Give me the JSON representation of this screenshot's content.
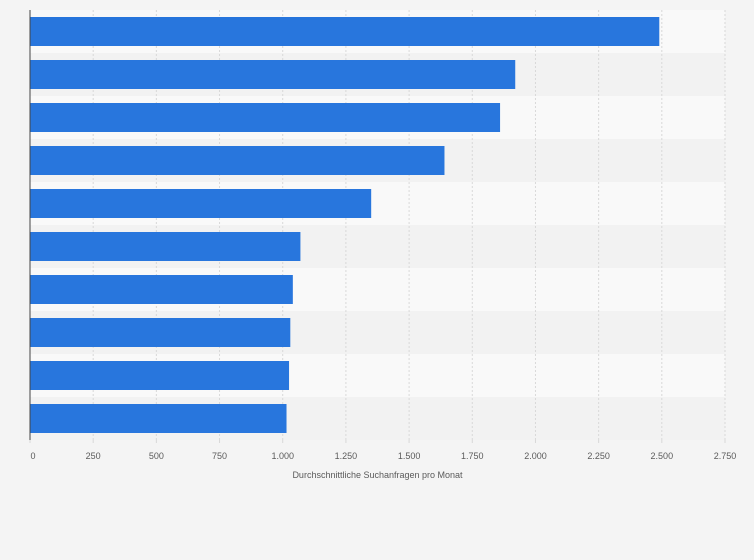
{
  "chart_data": {
    "type": "bar",
    "orientation": "horizontal",
    "categories": [
      "",
      "",
      "",
      "",
      "",
      "",
      "",
      "",
      "",
      ""
    ],
    "values": [
      2490,
      1920,
      1860,
      1640,
      1350,
      1070,
      1040,
      1030,
      1025,
      1015
    ],
    "xlabel": "Durchschnittliche Suchanfragen pro Monat",
    "ylabel": "",
    "xlim": [
      0,
      2750
    ],
    "ticks": [
      0,
      250,
      500,
      750,
      1000,
      1250,
      1500,
      1750,
      2000,
      2250,
      2500,
      2750
    ],
    "tick_labels": [
      "0",
      "250",
      "500",
      "750",
      "1.000",
      "1.250",
      "1.500",
      "1.750",
      "2.000",
      "2.250",
      "2.500",
      "2.750"
    ],
    "grid": "vertical",
    "legend": "none",
    "colors": {
      "bar": "#2876dd",
      "band_light": "#f9f9f9",
      "band_dark": "#f2f2f2",
      "grid": "#d8d8d8",
      "axis": "#444444",
      "text": "#5a5a5a"
    }
  }
}
